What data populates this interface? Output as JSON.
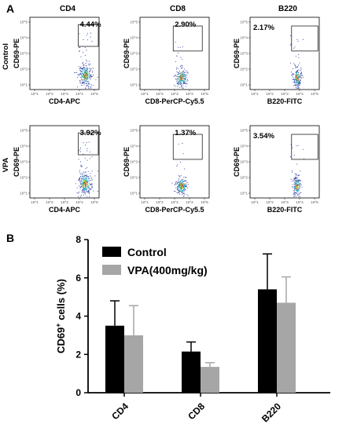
{
  "panel_labels": {
    "a": "A",
    "b": "B"
  },
  "flow": {
    "columns": [
      "CD4",
      "CD8",
      "B220"
    ],
    "rows": [
      "Control",
      "VPA"
    ],
    "tick_labels": [
      "10^1",
      "10^2",
      "10^3",
      "10^4",
      "10^5"
    ],
    "plots": [
      {
        "ylabel": "CD69-PE",
        "xlabel": "CD4-APC",
        "percent": "4.44%",
        "percent_pos": "inside",
        "population": "CD4"
      },
      {
        "ylabel": "CD69-PE",
        "xlabel": "CD8-PerCP-Cy5.5",
        "percent": "2.90%",
        "percent_pos": "inside",
        "population": "CD8"
      },
      {
        "ylabel": "CD69-PE",
        "xlabel": "B220-FITC",
        "percent": "2.17%",
        "percent_pos": "left",
        "population": "B220"
      },
      {
        "ylabel": "CD69-PE",
        "xlabel": "CD4-APC",
        "percent": "3.92%",
        "percent_pos": "inside",
        "population": "CD4"
      },
      {
        "ylabel": "CD69-PE",
        "xlabel": "CD8-PerCP-Cy5.5",
        "percent": "1.37%",
        "percent_pos": "inside",
        "population": "CD8"
      },
      {
        "ylabel": "CD69-PE",
        "xlabel": "B220-FITC",
        "percent": "3.54%",
        "percent_pos": "left",
        "population": "B220"
      }
    ]
  },
  "chart_data": {
    "type": "bar",
    "categories": [
      "CD4",
      "CD8",
      "B220"
    ],
    "series": [
      {
        "name": "Control",
        "color": "#000000",
        "values": [
          3.5,
          2.15,
          5.4
        ],
        "errors": [
          1.3,
          0.5,
          1.85
        ]
      },
      {
        "name": "VPA(400mg/kg)",
        "color": "#a6a6a6",
        "values": [
          3.0,
          1.35,
          4.7
        ],
        "errors": [
          1.55,
          0.22,
          1.35
        ]
      }
    ],
    "ylabel_main": "CD69",
    "ylabel_sup": "+",
    "ylabel_rest": " cells (%)",
    "ylim": [
      0,
      8
    ],
    "yticks": [
      0,
      2,
      4,
      6,
      8
    ],
    "legend_position": "top-left"
  }
}
